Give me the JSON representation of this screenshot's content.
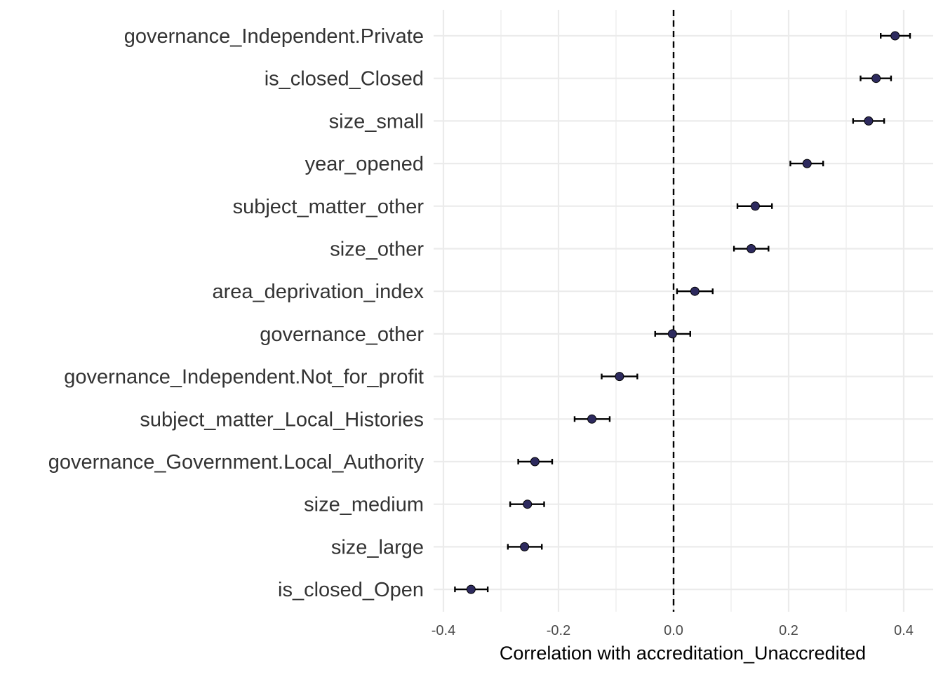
{
  "chart_data": {
    "type": "scatter",
    "subtype": "point-range (correlation estimates with error bars)",
    "title": "",
    "xlabel": "Correlation with accreditation_Unaccredited",
    "ylabel": "",
    "xlim": [
      -0.42,
      0.43
    ],
    "xticks": [
      -0.4,
      -0.2,
      0.0,
      0.2,
      0.4
    ],
    "xtick_labels": [
      "-0.4",
      "-0.2",
      "0.0",
      "0.2",
      "0.4"
    ],
    "reference_line": {
      "x": 0,
      "style": "dashed",
      "color": "#000000"
    },
    "grid": true,
    "legend": "none",
    "point_color": "#2d2a5e",
    "errorbar_color": "#000000",
    "grid_color": "#ebebeb",
    "categories": [
      "governance_Independent.Private",
      "is_closed_Closed",
      "size_small",
      "year_opened",
      "subject_matter_other",
      "size_other",
      "area_deprivation_index",
      "governance_other",
      "governance_Independent.Not_for_profit",
      "subject_matter_Local_Histories",
      "governance_Government.Local_Authority",
      "size_medium",
      "size_large",
      "is_closed_Open"
    ],
    "values": [
      0.385,
      0.352,
      0.339,
      0.232,
      0.142,
      0.135,
      0.037,
      -0.002,
      -0.094,
      -0.142,
      -0.241,
      -0.254,
      -0.259,
      -0.352
    ],
    "lower": [
      0.36,
      0.325,
      0.312,
      0.203,
      0.111,
      0.105,
      0.006,
      -0.032,
      -0.125,
      -0.172,
      -0.27,
      -0.284,
      -0.288,
      -0.38
    ],
    "upper": [
      0.411,
      0.378,
      0.366,
      0.26,
      0.171,
      0.165,
      0.068,
      0.029,
      -0.063,
      -0.111,
      -0.211,
      -0.225,
      -0.229,
      -0.323
    ]
  }
}
